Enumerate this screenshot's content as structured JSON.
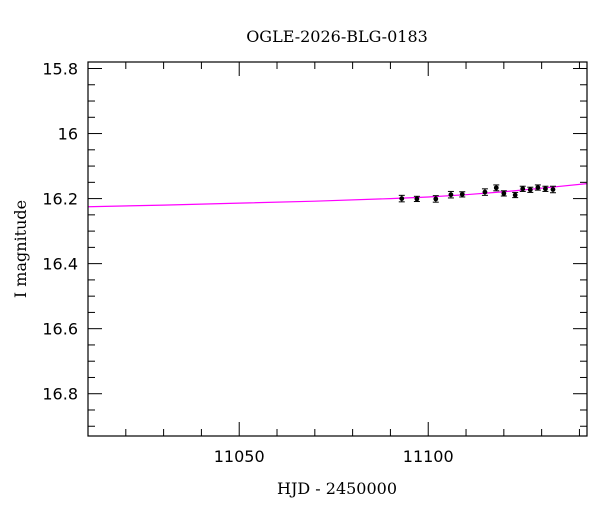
{
  "chart_data": {
    "type": "scatter",
    "title": "OGLE-2026-BLG-0183",
    "xlabel": "HJD - 2450000",
    "ylabel": "I magnitude",
    "xlim": [
      11010,
      11142
    ],
    "ylim": [
      15.78,
      16.93
    ],
    "y_inverted": true,
    "grid": false,
    "x_major_ticks": [
      11050,
      11100
    ],
    "x_tick_labels": [
      "11050",
      "11100"
    ],
    "y_major_ticks": [
      15.8,
      16.0,
      16.2,
      16.4,
      16.6,
      16.8
    ],
    "y_tick_labels": [
      "15.8",
      "16",
      "16.2",
      "16.4",
      "16.6",
      "16.8"
    ],
    "model_color": "#ff00ff",
    "point_color": "#000000",
    "model": {
      "x": [
        11010,
        11030,
        11050,
        11070,
        11090,
        11100,
        11110,
        11120,
        11130,
        11142
      ],
      "y": [
        16.225,
        16.22,
        16.214,
        16.208,
        16.2,
        16.195,
        16.188,
        16.179,
        16.168,
        16.154
      ]
    },
    "points": [
      {
        "x": 11093,
        "y": 16.2,
        "err": 0.01
      },
      {
        "x": 11097,
        "y": 16.201,
        "err": 0.008
      },
      {
        "x": 11102,
        "y": 16.201,
        "err": 0.01
      },
      {
        "x": 11106,
        "y": 16.188,
        "err": 0.01
      },
      {
        "x": 11109,
        "y": 16.187,
        "err": 0.008
      },
      {
        "x": 11115,
        "y": 16.18,
        "err": 0.01
      },
      {
        "x": 11118,
        "y": 16.167,
        "err": 0.009
      },
      {
        "x": 11120,
        "y": 16.184,
        "err": 0.008
      },
      {
        "x": 11123,
        "y": 16.189,
        "err": 0.008
      },
      {
        "x": 11125,
        "y": 16.17,
        "err": 0.008
      },
      {
        "x": 11127,
        "y": 16.173,
        "err": 0.008
      },
      {
        "x": 11129,
        "y": 16.166,
        "err": 0.008
      },
      {
        "x": 11131,
        "y": 16.17,
        "err": 0.008
      },
      {
        "x": 11133,
        "y": 16.172,
        "err": 0.01
      }
    ]
  }
}
